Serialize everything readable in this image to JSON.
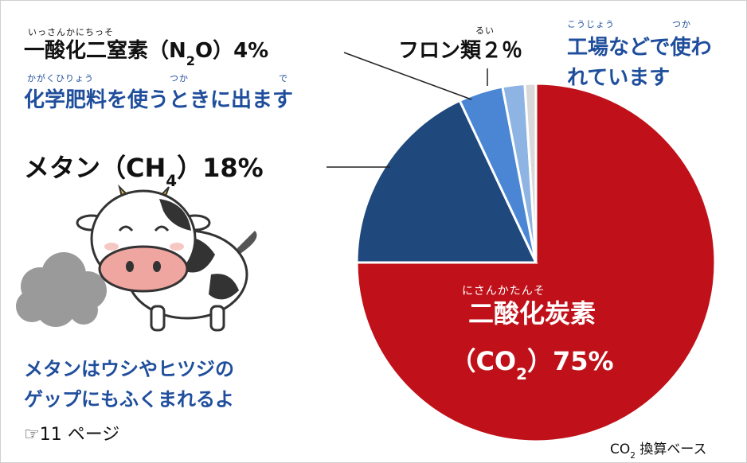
{
  "chart_data": {
    "type": "pie",
    "values": [
      75,
      18,
      4,
      2,
      1
    ],
    "colors": [
      "#c0111a",
      "#1f497d",
      "#4a86d4",
      "#8eb4e3",
      "#d9d9d9"
    ],
    "labels": [
      {
        "ruby": [
          "にさんかたんそ"
        ],
        "lines": [
          [
            "二酸化炭素"
          ],
          [
            "（CO",
            "2",
            "）75%"
          ]
        ]
      },
      {
        "lines": [
          [
            "メタン（CH",
            "4",
            "）18%"
          ]
        ]
      },
      {
        "ruby": [
          "いっさんかにちっそ"
        ],
        "lines": [
          [
            "一酸化二窒素（N",
            "2",
            "O）4%"
          ]
        ]
      },
      {
        "ruby": [
          "るい"
        ],
        "lines": [
          [
            "フロン類２％"
          ]
        ]
      },
      null
    ],
    "notes": [
      {
        "ruby": [
          "かがくひりょう",
          "つか",
          "で"
        ],
        "lines": [
          [
            "化学肥料を使うときに出ます"
          ]
        ]
      },
      {
        "ruby": [
          "こうじょう",
          "つか"
        ],
        "lines": [
          [
            "工場などで使わ"
          ],
          [
            "れています"
          ]
        ]
      },
      {
        "lines": [
          [
            "メタンはウシやヒツジの"
          ],
          [
            "ゲップにもふくまれるよ"
          ]
        ]
      },
      {
        "lines": [
          [
            "☞11 ページ"
          ]
        ]
      },
      {
        "lines": [
          [
            "CO",
            "2",
            " 換算ベース"
          ]
        ]
      }
    ]
  }
}
